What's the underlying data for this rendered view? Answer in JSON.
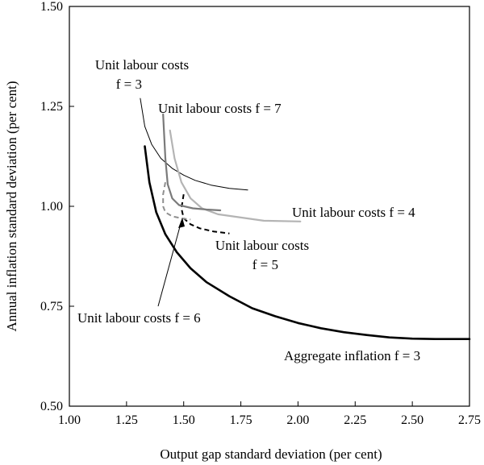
{
  "chart_data": {
    "type": "line",
    "xlabel": "Output gap standard deviation (per cent)",
    "ylabel": "Annual inflation standard deviation (per cent)",
    "xlim": [
      1.0,
      2.75
    ],
    "ylim": [
      0.5,
      1.5
    ],
    "xticks": [
      "1.00",
      "1.25",
      "1.50",
      "1.75",
      "2.00",
      "2.25",
      "2.50",
      "2.75"
    ],
    "yticks": [
      "0.50",
      "0.75",
      "1.00",
      "1.25",
      "1.50"
    ],
    "grid": false,
    "legend": "none",
    "series": [
      {
        "name": "Aggregate inflation f = 3",
        "color": "#000000",
        "style": "solid-thick",
        "points": [
          [
            1.33,
            1.15
          ],
          [
            1.35,
            1.06
          ],
          [
            1.38,
            0.985
          ],
          [
            1.42,
            0.93
          ],
          [
            1.47,
            0.885
          ],
          [
            1.53,
            0.845
          ],
          [
            1.6,
            0.81
          ],
          [
            1.7,
            0.775
          ],
          [
            1.8,
            0.745
          ],
          [
            1.9,
            0.725
          ],
          [
            2.0,
            0.708
          ],
          [
            2.1,
            0.695
          ],
          [
            2.2,
            0.685
          ],
          [
            2.3,
            0.678
          ],
          [
            2.4,
            0.672
          ],
          [
            2.5,
            0.669
          ],
          [
            2.6,
            0.668
          ],
          [
            2.75,
            0.668
          ]
        ]
      },
      {
        "name": "Unit labour costs f = 3",
        "color": "#000000",
        "style": "solid-thin",
        "points": [
          [
            1.31,
            1.27
          ],
          [
            1.33,
            1.2
          ],
          [
            1.36,
            1.155
          ],
          [
            1.4,
            1.12
          ],
          [
            1.45,
            1.095
          ],
          [
            1.5,
            1.078
          ],
          [
            1.55,
            1.065
          ],
          [
            1.62,
            1.053
          ],
          [
            1.7,
            1.045
          ],
          [
            1.78,
            1.041
          ]
        ]
      },
      {
        "name": "Unit labour costs f = 4",
        "color": "#b4b4b4",
        "style": "solid",
        "points": [
          [
            1.44,
            1.19
          ],
          [
            1.46,
            1.12
          ],
          [
            1.49,
            1.06
          ],
          [
            1.53,
            1.02
          ],
          [
            1.58,
            0.995
          ],
          [
            1.65,
            0.98
          ],
          [
            1.75,
            0.972
          ],
          [
            1.85,
            0.964
          ],
          [
            2.01,
            0.962
          ]
        ]
      },
      {
        "name": "Unit labour costs f = 5",
        "color": "#000000",
        "style": "dashed",
        "points": [
          [
            1.5,
            1.03
          ],
          [
            1.49,
            0.995
          ],
          [
            1.5,
            0.97
          ],
          [
            1.53,
            0.955
          ],
          [
            1.57,
            0.945
          ],
          [
            1.63,
            0.937
          ],
          [
            1.7,
            0.932
          ]
        ]
      },
      {
        "name": "Unit labour costs f = 6",
        "color": "#909090",
        "style": "dashed",
        "points": [
          [
            1.42,
            1.06
          ],
          [
            1.41,
            1.03
          ],
          [
            1.41,
            1.0
          ],
          [
            1.42,
            0.985
          ],
          [
            1.45,
            0.975
          ],
          [
            1.49,
            0.97
          ],
          [
            1.53,
            0.967
          ]
        ]
      },
      {
        "name": "Unit labour costs f = 7",
        "color": "#7a7a7a",
        "style": "solid",
        "points": [
          [
            1.41,
            1.23
          ],
          [
            1.42,
            1.12
          ],
          [
            1.43,
            1.055
          ],
          [
            1.45,
            1.02
          ],
          [
            1.48,
            1.003
          ],
          [
            1.54,
            0.995
          ],
          [
            1.6,
            0.992
          ],
          [
            1.66,
            0.99
          ]
        ]
      }
    ],
    "annotations": {
      "ulc3_line1": "Unit labour costs",
      "ulc3_line2": "f = 3",
      "ulc7": "Unit labour costs f = 7",
      "ulc4": "Unit labour costs f = 4",
      "ulc5_line1": "Unit labour costs",
      "ulc5_line2": "f = 5",
      "ulc6": "Unit labour costs f = 6",
      "agg": "Aggregate inflation f = 3"
    }
  }
}
